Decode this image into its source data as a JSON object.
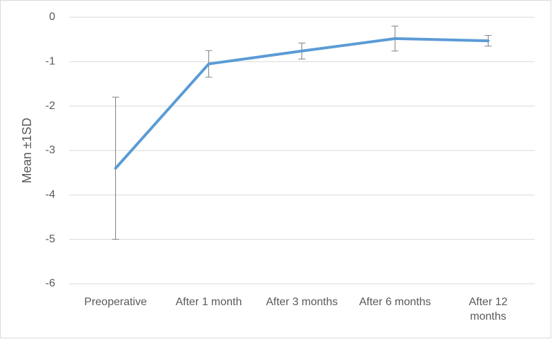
{
  "chart_data": {
    "type": "line",
    "y_label": "Mean ±1SD",
    "categories": [
      "Preoperative",
      "After 1 month",
      "After 3 months",
      "After 6 months",
      "After 12 months"
    ],
    "values": [
      -3.4,
      -1.05,
      -0.76,
      -0.48,
      -0.53
    ],
    "errors": [
      1.6,
      0.3,
      0.18,
      0.28,
      0.12
    ],
    "color": "#5b9bd5",
    "error_color": "#7f7f7f",
    "ylim": [
      -6,
      0
    ],
    "yticks": [
      0,
      -1,
      -2,
      -3,
      -4,
      -5,
      -6
    ],
    "grid": true
  }
}
